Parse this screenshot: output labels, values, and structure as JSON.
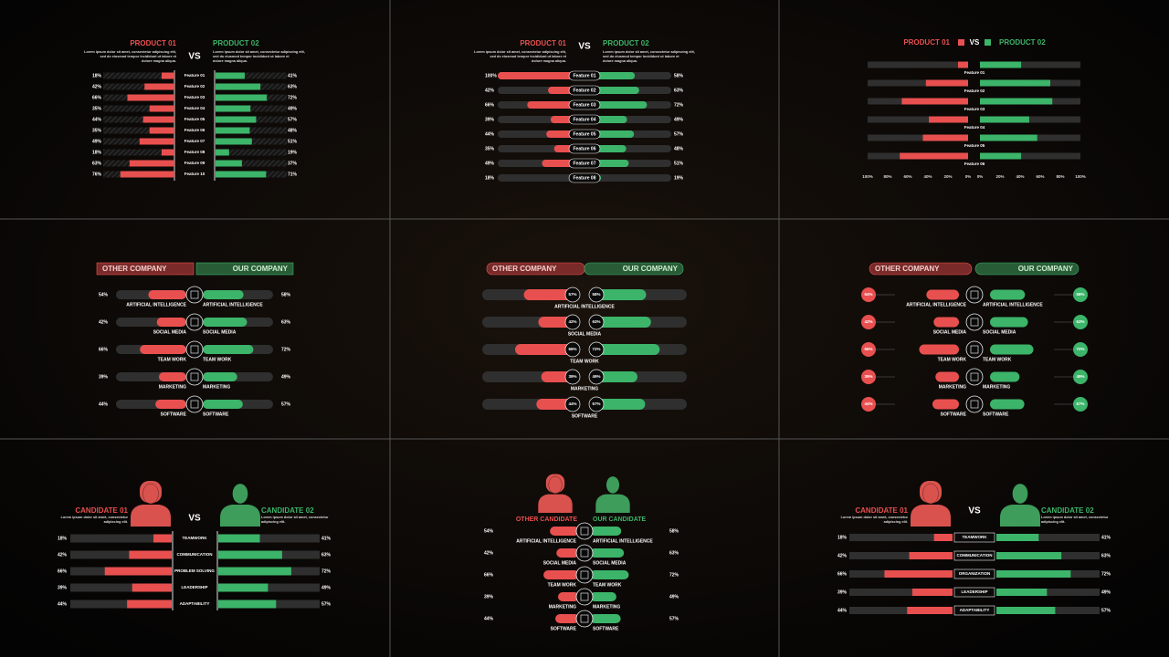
{
  "colors": {
    "left": "#e8504f",
    "right": "#3cb469",
    "left_dark": "#7a2b29",
    "right_dark": "#285c37",
    "track": "#2f2f2f"
  },
  "panels": [
    {
      "left_title": "PRODUCT 01",
      "right_title": "PRODUCT 02",
      "vs": "VS",
      "left_text": [
        "Lorem ipsum dolor sit amet, consectetur adipiscing elit,",
        "sed do eiusmod tempor incididunt ut labore et",
        "dolore magna aliqua."
      ],
      "right_text": [
        "Lorem ipsum dolor sit amet, consectetur adipiscing elit,",
        "sed do eiusmod tempor incididunt ut labore et",
        "dolore magna aliqua."
      ],
      "categories": [
        "Feature 01",
        "Feature 02",
        "Feature 03",
        "Feature 04",
        "Feature 05",
        "Feature 06",
        "Feature 07",
        "Feature 08",
        "Feature 09",
        "Feature 10"
      ],
      "left_values": [
        18,
        42,
        66,
        35,
        44,
        35,
        49,
        18,
        63,
        76
      ],
      "left_labels": [
        "18%",
        "42%",
        "66%",
        "35%",
        "44%",
        "35%",
        "49%",
        "18%",
        "63%",
        "76%"
      ],
      "right_values": [
        41,
        63,
        72,
        49,
        57,
        48,
        51,
        19,
        37,
        71
      ],
      "right_labels": [
        "41%",
        "63%",
        "72%",
        "49%",
        "57%",
        "48%",
        "51%",
        "19%",
        "37%",
        "71%"
      ]
    },
    {
      "left_title": "PRODUCT 01",
      "right_title": "PRODUCT 02",
      "vs": "VS",
      "left_text": [
        "Lorem ipsum dolor sit amet, consectetur adipiscing elit,",
        "sed do eiusmod tempor incididunt ut labore et",
        "dolore magna aliqua."
      ],
      "right_text": [
        "Lorem ipsum dolor sit amet, consectetur adipiscing elit,",
        "sed do eiusmod tempor incididunt ut labore et",
        "dolore magna aliqua."
      ],
      "categories": [
        "Feature 01",
        "Feature 02",
        "Feature 03",
        "Feature 04",
        "Feature 05",
        "Feature 06",
        "Feature 07",
        "Feature 08"
      ],
      "left_values": [
        100,
        42,
        66,
        39,
        44,
        35,
        49,
        18
      ],
      "left_labels": [
        "100%",
        "42%",
        "66%",
        "39%",
        "44%",
        "35%",
        "49%",
        "18%"
      ],
      "right_values": [
        58,
        63,
        72,
        49,
        57,
        48,
        51,
        19
      ],
      "right_labels": [
        "58%",
        "63%",
        "72%",
        "49%",
        "57%",
        "48%",
        "51%",
        "19%"
      ]
    },
    {
      "left_title": "PRODUCT 01",
      "right_title": "PRODUCT 02",
      "vs": "VS",
      "categories": [
        "Feature 01",
        "Feature 02",
        "Feature 03",
        "Feature 04",
        "Feature 05",
        "Feature 06"
      ],
      "left_values": [
        10,
        42,
        66,
        39,
        45,
        68
      ],
      "right_values": [
        41,
        70,
        72,
        49,
        57,
        41
      ],
      "left_ticks": [
        {
          "value": 100,
          "label": "100%"
        },
        {
          "value": 80,
          "label": "80%"
        },
        {
          "value": 60,
          "label": "60%"
        },
        {
          "value": 40,
          "label": "40%"
        },
        {
          "value": 20,
          "label": "20%"
        },
        {
          "value": 0,
          "label": "0%"
        }
      ],
      "right_ticks": [
        {
          "value": 0,
          "label": "0%"
        },
        {
          "value": 20,
          "label": "20%"
        },
        {
          "value": 40,
          "label": "40%"
        },
        {
          "value": 60,
          "label": "60%"
        },
        {
          "value": 80,
          "label": "80%"
        },
        {
          "value": 100,
          "label": "100%"
        }
      ]
    },
    {
      "left_title": "OTHER COMPANY",
      "right_title": "OUR COMPANY",
      "categories": [
        "ARTIFICIAL INTELLIGENCE",
        "SOCIAL MEDIA",
        "TEAM WORK",
        "MARKETING",
        "SOFTWARE"
      ],
      "left_values": [
        54,
        42,
        66,
        39,
        44
      ],
      "left_labels": [
        "54%",
        "42%",
        "66%",
        "39%",
        "44%"
      ],
      "right_values": [
        58,
        63,
        72,
        49,
        57
      ],
      "right_labels": [
        "58%",
        "63%",
        "72%",
        "49%",
        "57%"
      ]
    },
    {
      "left_title": "OTHER COMPANY",
      "right_title": "OUR COMPANY",
      "categories": [
        "ARTIFICIAL INTELLIGENCE",
        "SOCIAL MEDIA",
        "TEAM WORK",
        "MARKETING",
        "SOFTWARE"
      ],
      "left_values": [
        57,
        42,
        66,
        39,
        44
      ],
      "left_labels": [
        "57%",
        "42%",
        "66%",
        "39%",
        "44%"
      ],
      "right_values": [
        58,
        63,
        72,
        49,
        57
      ],
      "right_labels": [
        "58%",
        "63%",
        "72%",
        "49%",
        "57%"
      ]
    },
    {
      "left_title": "OTHER COMPANY",
      "right_title": "OUR COMPANY",
      "categories": [
        "ARTIFICIAL INTELLIGENCE",
        "SOCIAL MEDIA",
        "TEAM WORK",
        "MARKETING",
        "SOFTWARE"
      ],
      "left_values": [
        54,
        42,
        66,
        39,
        44
      ],
      "left_labels": [
        "54%",
        "42%",
        "66%",
        "39%",
        "44%"
      ],
      "right_values": [
        58,
        63,
        72,
        49,
        57
      ],
      "right_labels": [
        "58%",
        "63%",
        "72%",
        "49%",
        "57%"
      ]
    },
    {
      "left_title": "CANDIDATE 01",
      "right_title": "CANDIDATE 02",
      "vs": "VS",
      "left_text": [
        "Lorem ipsum dolor sit amet, consectetur",
        "adipiscing elit."
      ],
      "right_text": [
        "Lorem ipsum dolor sit amet, consectetur",
        "adipiscing elit."
      ],
      "categories": [
        "TEAMWORK",
        "COMMUNICATION",
        "PROBLEM SOLVING",
        "LEADERSHIP",
        "ADAPTABILITY"
      ],
      "left_values": [
        18,
        42,
        66,
        39,
        44
      ],
      "left_labels": [
        "18%",
        "42%",
        "66%",
        "39%",
        "44%"
      ],
      "right_values": [
        41,
        63,
        72,
        49,
        57
      ],
      "right_labels": [
        "41%",
        "63%",
        "72%",
        "49%",
        "57%"
      ]
    },
    {
      "left_title": "OTHER CANDIDATE",
      "right_title": "OUR CANDIDATE",
      "categories": [
        "ARTIFICIAL INTELLIGENCE",
        "SOCIAL MEDIA",
        "TEAM WORK",
        "MARKETING",
        "SOFTWARE"
      ],
      "left_values": [
        54,
        42,
        66,
        39,
        44
      ],
      "left_labels": [
        "54%",
        "42%",
        "66%",
        "39%",
        "44%"
      ],
      "right_values": [
        58,
        63,
        72,
        49,
        57
      ],
      "right_labels": [
        "58%",
        "63%",
        "72%",
        "49%",
        "57%"
      ]
    },
    {
      "left_title": "CANDIDATE 01",
      "right_title": "CANDIDATE 02",
      "vs": "VS",
      "left_text": [
        "Lorem ipsum dolor sit amet, consectetur",
        "adipiscing elit."
      ],
      "right_text": [
        "Lorem ipsum dolor sit amet, consectetur",
        "adipiscing elit."
      ],
      "categories": [
        "TEAMWORK",
        "COMMUNICATION",
        "ORGANIZATION",
        "LEADERSHIP",
        "ADAPTABILITY"
      ],
      "left_values": [
        18,
        42,
        66,
        39,
        44
      ],
      "left_labels": [
        "18%",
        "42%",
        "66%",
        "39%",
        "44%"
      ],
      "right_values": [
        41,
        63,
        72,
        49,
        57
      ],
      "right_labels": [
        "41%",
        "63%",
        "72%",
        "49%",
        "57%"
      ]
    }
  ]
}
